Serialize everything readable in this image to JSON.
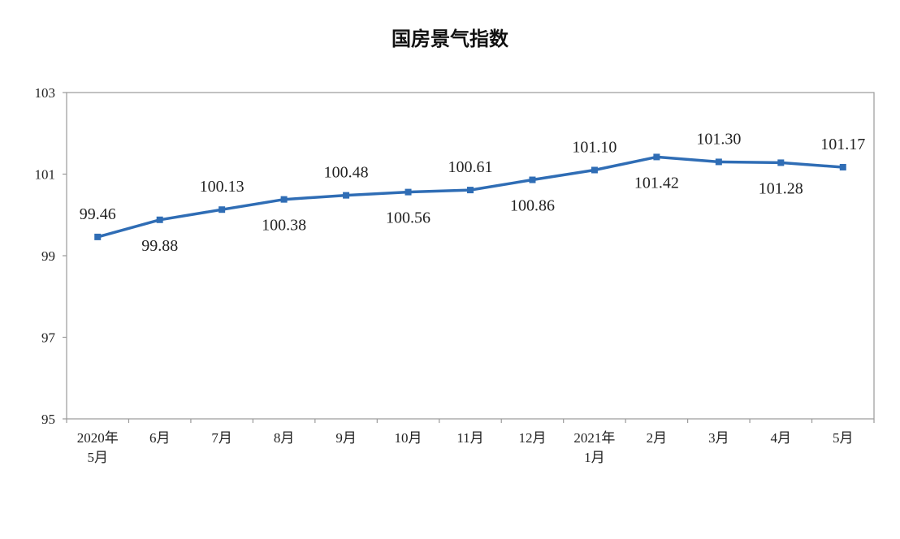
{
  "chart_data": {
    "type": "line",
    "title": "国房景气指数",
    "categories": [
      [
        "2020年",
        "5月"
      ],
      [
        "6月"
      ],
      [
        "7月"
      ],
      [
        "8月"
      ],
      [
        "9月"
      ],
      [
        "10月"
      ],
      [
        "11月"
      ],
      [
        "12月"
      ],
      [
        "2021年",
        "1月"
      ],
      [
        "2月"
      ],
      [
        "3月"
      ],
      [
        "4月"
      ],
      [
        "5月"
      ]
    ],
    "values": [
      99.46,
      99.88,
      100.13,
      100.38,
      100.48,
      100.56,
      100.61,
      100.86,
      101.1,
      101.42,
      101.3,
      101.28,
      101.17
    ],
    "data_labels": [
      "99.46",
      "99.88",
      "100.13",
      "100.38",
      "100.48",
      "100.56",
      "100.61",
      "100.86",
      "101.10",
      "101.42",
      "101.30",
      "101.28",
      "101.17"
    ],
    "label_position": [
      "above",
      "below",
      "above",
      "below",
      "above",
      "below",
      "above",
      "below",
      "above",
      "below",
      "above",
      "below",
      "above"
    ],
    "ylim": [
      95,
      103
    ],
    "yticks": [
      "95",
      "97",
      "99",
      "101",
      "103"
    ],
    "grid": false,
    "line_color": "#2F6DB5"
  }
}
